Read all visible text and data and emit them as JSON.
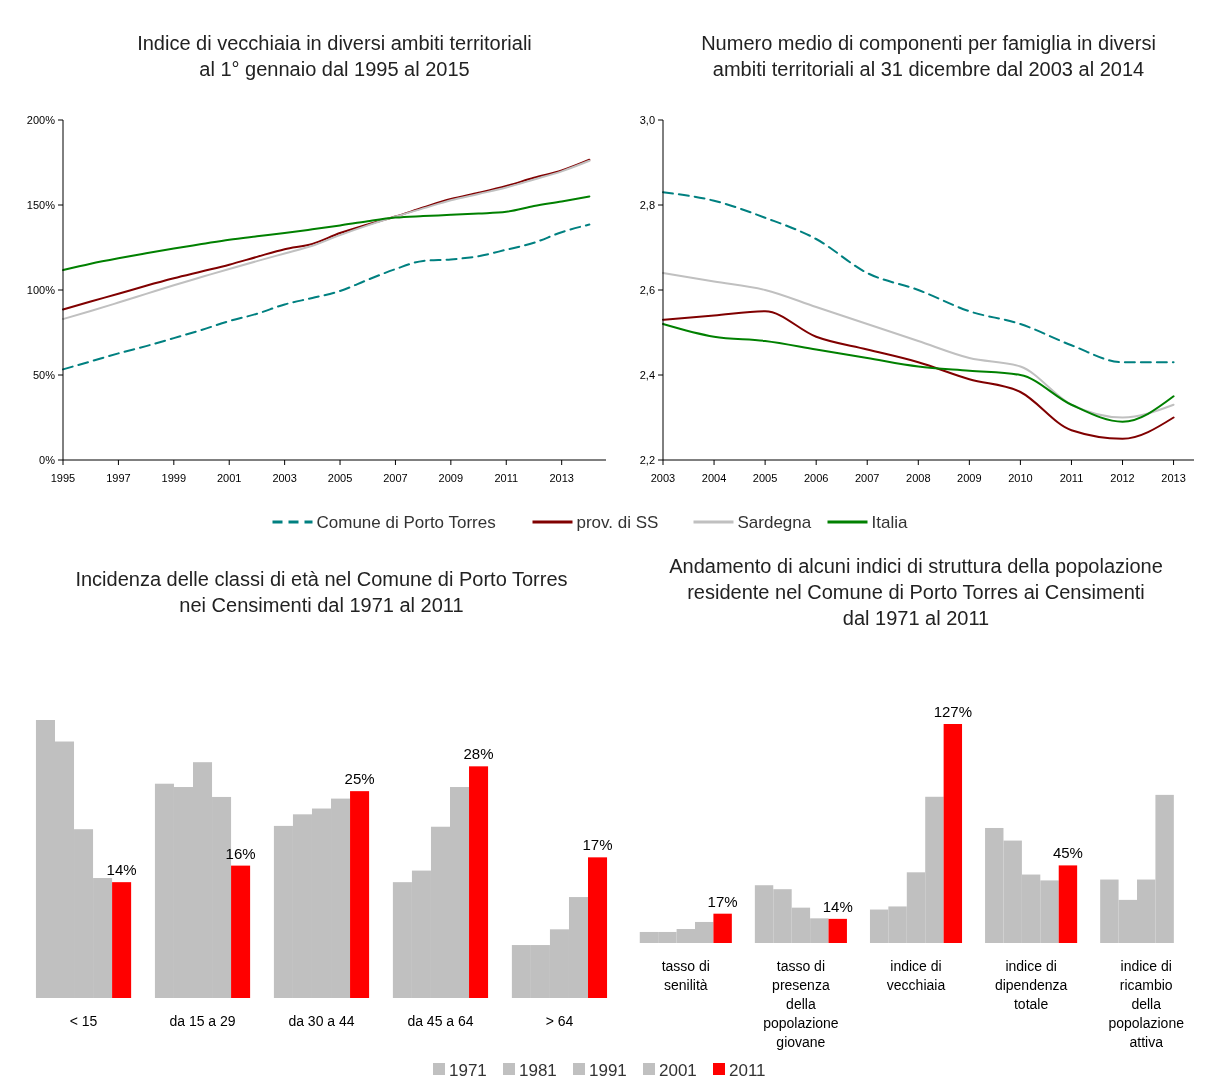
{
  "chart_data": [
    {
      "type": "line",
      "title": "Indice di vecchiaia in diversi ambiti territoriali\nal 1° gennaio dal 1995 al 2015",
      "x": [
        1995,
        1996,
        1997,
        1998,
        1999,
        2000,
        2001,
        2002,
        2003,
        2004,
        2005,
        2006,
        2007,
        2008,
        2009,
        2010,
        2011,
        2012,
        2013,
        2014
      ],
      "xlim": [
        1995,
        2014.6
      ],
      "xticks": [
        1995,
        1997,
        1999,
        2001,
        2003,
        2005,
        2007,
        2009,
        2011,
        2013
      ],
      "ylim": [
        0,
        200
      ],
      "yticks": [
        {
          "value": 0,
          "label": "0%"
        },
        {
          "value": 50,
          "label": "50%"
        },
        {
          "value": 100,
          "label": "100%"
        },
        {
          "value": 150,
          "label": "150%"
        },
        {
          "value": 200,
          "label": "200%"
        }
      ],
      "legend": "bottom",
      "series": [
        {
          "name": "Comune di Porto Torres",
          "color": "#008080",
          "line_style": "dashed",
          "values": [
            53.3,
            58,
            62.7,
            67,
            71.7,
            76.5,
            81.7,
            86,
            91.5,
            95.3,
            99.4,
            106,
            112.3,
            117.1,
            118,
            119.9,
            123.7,
            127.8,
            134,
            138.5
          ]
        },
        {
          "name": "prov. di SS",
          "color": "#800000",
          "values": [
            88.5,
            93.2,
            97.8,
            102.5,
            106.9,
            110.9,
            114.9,
            119.5,
            124,
            127.1,
            133.5,
            138.5,
            143.2,
            148.5,
            153.5,
            157.2,
            161.2,
            166,
            170.3,
            176.6
          ]
        },
        {
          "name": "Sardegna",
          "color": "#c0c0c0",
          "values": [
            82.9,
            87.6,
            92.6,
            97.7,
            102.8,
            107.6,
            112.4,
            117,
            121.5,
            126,
            132.3,
            138,
            143.2,
            148,
            152.8,
            156.5,
            160.3,
            165,
            169.8,
            176
          ]
        },
        {
          "name": "Italia",
          "color": "#008000",
          "values": [
            111.7,
            115.5,
            118.7,
            121.6,
            124.4,
            127,
            129.6,
            131.6,
            133.5,
            135.7,
            138,
            140.5,
            142.6,
            143.5,
            144.2,
            145,
            146,
            149.4,
            152.1,
            155
          ]
        }
      ]
    },
    {
      "type": "line",
      "title": "Numero medio di componenti per famiglia in diversi\nambiti territoriali al 31 dicembre dal 2003 al 2014",
      "x": [
        2003,
        2004,
        2005,
        2006,
        2007,
        2008,
        2009,
        2010,
        2011,
        2012,
        2013
      ],
      "xlim": [
        2003,
        2013.4
      ],
      "xticks": [
        2003,
        2004,
        2005,
        2006,
        2007,
        2008,
        2009,
        2010,
        2011,
        2012,
        2013
      ],
      "ylim": [
        2.2,
        3.0
      ],
      "yticks": [
        {
          "value": 2.2,
          "label": "2,2"
        },
        {
          "value": 2.4,
          "label": "2,4"
        },
        {
          "value": 2.6,
          "label": "2,6"
        },
        {
          "value": 2.8,
          "label": "2,8"
        },
        {
          "value": 3.0,
          "label": "3,0"
        }
      ],
      "series": [
        {
          "color": "#008080",
          "line_style": "dashed",
          "values": [
            2.83,
            2.81,
            2.77,
            2.72,
            2.64,
            2.6,
            2.55,
            2.52,
            2.47,
            2.43,
            2.43
          ]
        },
        {
          "color": "#800000",
          "values": [
            2.53,
            2.54,
            2.55,
            2.49,
            2.46,
            2.43,
            2.39,
            2.36,
            2.27,
            2.25,
            2.3
          ]
        },
        {
          "color": "#c0c0c0",
          "values": [
            2.64,
            2.62,
            2.6,
            2.56,
            2.52,
            2.48,
            2.44,
            2.42,
            2.33,
            2.3,
            2.33
          ]
        },
        {
          "color": "#008000",
          "values": [
            2.52,
            2.49,
            2.48,
            2.46,
            2.44,
            2.42,
            2.41,
            2.4,
            2.33,
            2.29,
            2.35
          ]
        }
      ]
    },
    {
      "type": "bar",
      "title": "Incidenza delle classi di età nel Comune di Porto Torres\nnei Censimenti dal 1971 al 2011",
      "categories": [
        "< 15",
        "da 15 a 29",
        "da 30 a 44",
        "da 45 a 64",
        "> 64"
      ],
      "tick_labels": "x",
      "legend": "bottom",
      "series": [
        {
          "name": "1971",
          "color": "#c0c0c0",
          "values": [
            33.6,
            25.9,
            20.8,
            14.0,
            6.4
          ]
        },
        {
          "name": "1981",
          "color": "#c0c0c0",
          "values": [
            31.0,
            25.5,
            22.2,
            15.4,
            6.4
          ]
        },
        {
          "name": "1991",
          "color": "#c0c0c0",
          "values": [
            20.4,
            28.5,
            22.9,
            20.7,
            8.3
          ]
        },
        {
          "name": "2001",
          "color": "#c0c0c0",
          "values": [
            14.5,
            24.3,
            24.1,
            25.5,
            12.2
          ]
        },
        {
          "name": "2011",
          "color": "#ff0000",
          "values": [
            14,
            16,
            25,
            28,
            17
          ],
          "value_labels": [
            "14%",
            "16%",
            "25%",
            "28%",
            "17%"
          ]
        }
      ]
    },
    {
      "type": "bar",
      "title": "Andamento di alcuni indici di struttura della popolazione\nresidente nel Comune di Porto Torres ai Censimenti\ndal 1971 al 2011",
      "categories": [
        "tasso di senilità",
        "tasso di presenza della popolazione giovane",
        "indice di vecchiaia",
        "indice di dipendenza totale",
        "indice di ricambio della popolazione attiva"
      ],
      "tick_labels": "x",
      "series": [
        {
          "color": "#c0c0c0",
          "values": [
            6.4,
            33.5,
            19.4,
            66.7,
            36.8
          ]
        },
        {
          "color": "#c0c0c0",
          "values": [
            6.4,
            31.2,
            21.2,
            59.4,
            25.0
          ]
        },
        {
          "color": "#c0c0c0",
          "values": [
            8.1,
            20.5,
            41.0,
            39.7,
            36.8
          ]
        },
        {
          "color": "#c0c0c0",
          "values": [
            12.2,
            14.3,
            84.8,
            36.3,
            85.9
          ]
        },
        {
          "color": "#ff0000",
          "values": [
            17,
            14,
            127,
            45,
            null
          ],
          "value_labels": [
            "17%",
            "14%",
            "127%",
            "45%",
            null
          ]
        }
      ]
    }
  ]
}
